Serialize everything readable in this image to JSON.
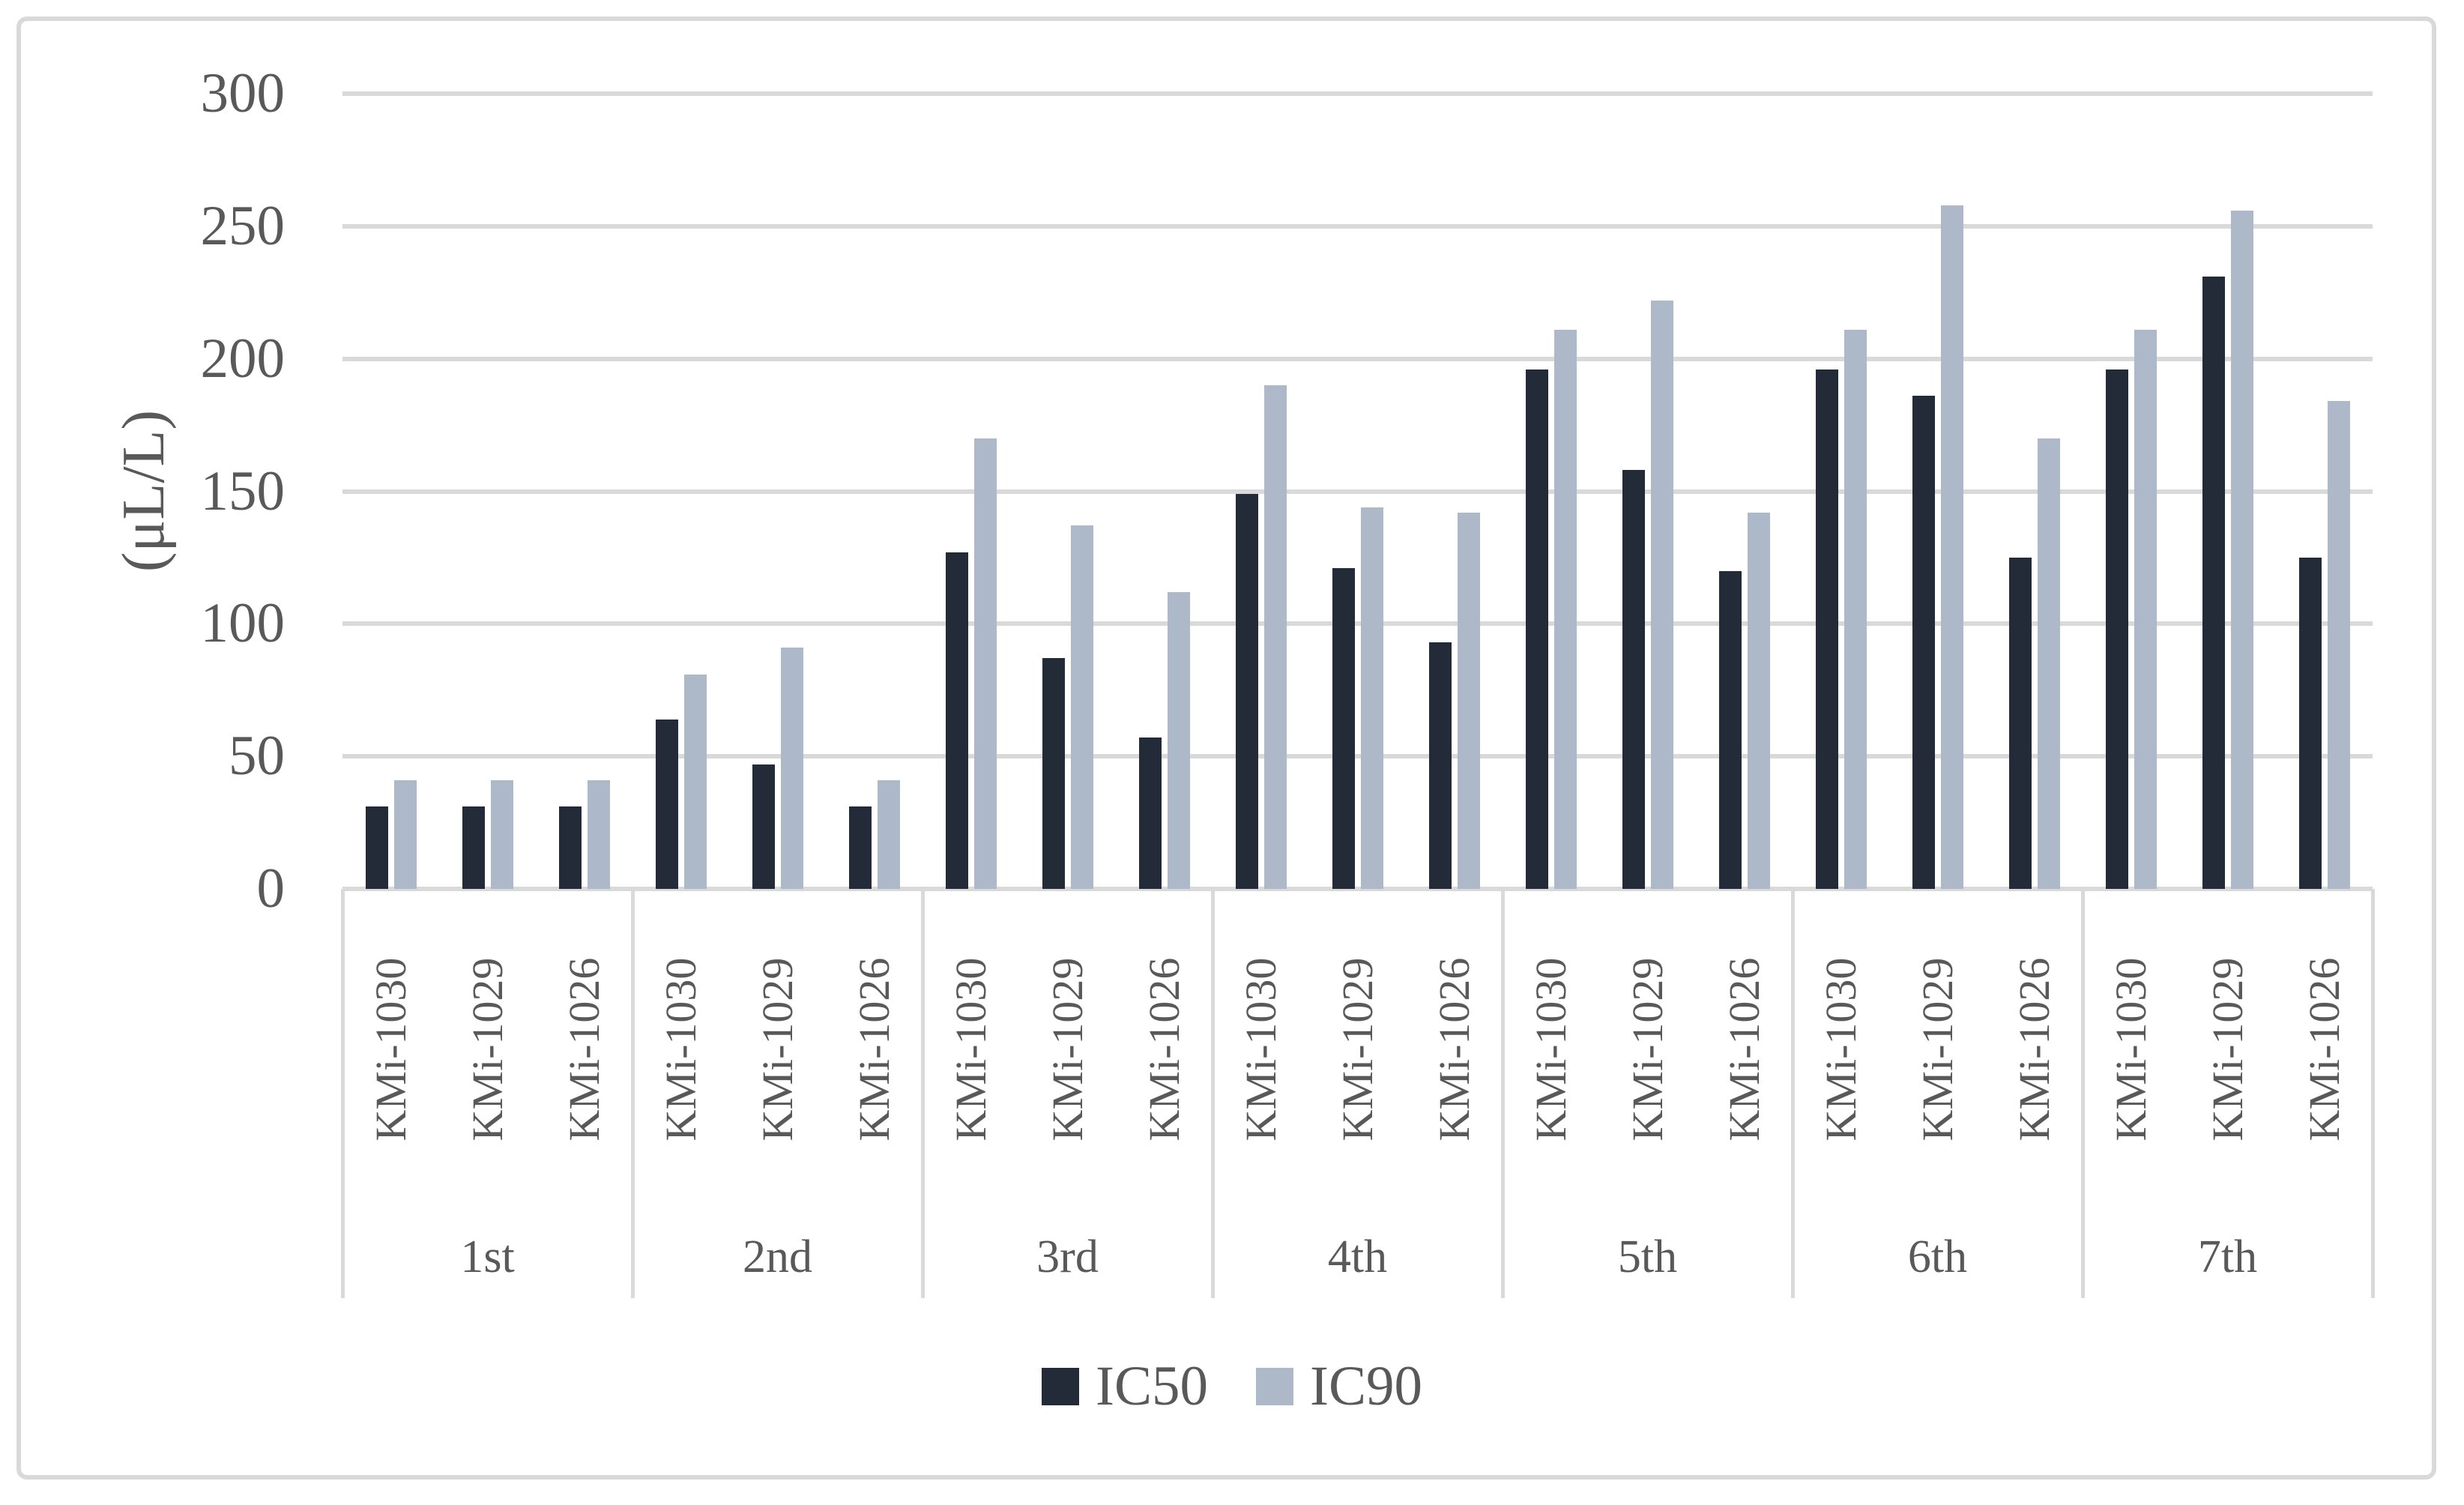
{
  "figure": {
    "y_axis": {
      "title": "(μL/L)",
      "ticks": [
        "300",
        "250",
        "200",
        "150",
        "100",
        "50",
        "0"
      ]
    },
    "legend": {
      "items": [
        {
          "label": "IC50",
          "color": "#232A38"
        },
        {
          "label": "IC90",
          "color": "#ADB8C8"
        }
      ]
    }
  },
  "colors": {
    "ic50_bar": "#232A38",
    "ic90_bar": "#ADB8C8",
    "gridline": "#D9D9D9",
    "text": "#595959"
  },
  "chart_data": {
    "type": "bar",
    "title": "",
    "xlabel": "",
    "ylabel": "(μL/L)",
    "ylim": [
      0,
      300
    ],
    "yticks": [
      0,
      50,
      100,
      150,
      200,
      250,
      300
    ],
    "grid": true,
    "legend_position": "bottom-center",
    "group_labels": [
      "1st",
      "2nd",
      "3rd",
      "4th",
      "5th",
      "6th",
      "7th"
    ],
    "subcategories": [
      "KMi-1030",
      "KMi-1029",
      "KMi-1026"
    ],
    "series": [
      {
        "name": "IC50",
        "color": "#232A38",
        "values": [
          [
            31,
            31,
            31
          ],
          [
            64,
            47,
            31
          ],
          [
            127,
            87,
            57
          ],
          [
            149,
            121,
            93
          ],
          [
            196,
            158,
            120
          ],
          [
            196,
            186,
            125
          ],
          [
            196,
            231,
            125
          ]
        ]
      },
      {
        "name": "IC90",
        "color": "#ADB8C8",
        "values": [
          [
            41,
            41,
            41
          ],
          [
            81,
            91,
            41
          ],
          [
            170,
            137,
            112
          ],
          [
            190,
            144,
            142
          ],
          [
            211,
            222,
            142
          ],
          [
            211,
            258,
            170
          ],
          [
            211,
            256,
            184
          ]
        ]
      }
    ]
  }
}
